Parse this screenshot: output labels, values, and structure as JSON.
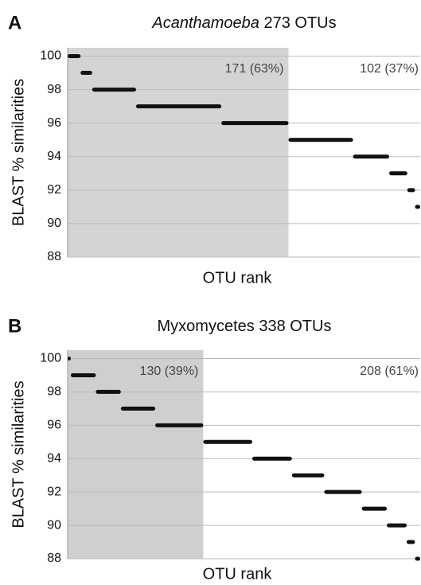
{
  "chart_data": [
    {
      "type": "rank_steps",
      "panel": "A",
      "title_taxon": "Acanthamoeba",
      "taxon_italic": true,
      "title_count": "273 OTUs",
      "ylabel": "BLAST % similarities",
      "xlabel": "OTU rank",
      "levels": [
        100,
        99,
        98,
        97,
        96,
        95,
        94,
        93,
        92,
        91
      ],
      "counts": [
        10,
        9,
        34,
        66,
        52,
        50,
        28,
        14,
        6,
        4
      ],
      "color": "#111111",
      "shade_color": "#d4d4d4",
      "shade_until_level": 96,
      "annotations": [
        "171 (63%)",
        "102 (37%)"
      ],
      "xlim": [
        0,
        273
      ],
      "ylim": [
        88,
        100.5
      ],
      "yticks": [
        88,
        90,
        92,
        94,
        96,
        98,
        100
      ],
      "grid": true
    },
    {
      "type": "rank_steps",
      "panel": "B",
      "title_taxon": "Myxomycetes",
      "taxon_italic": false,
      "title_count": "338 OTUs",
      "ylabel": "BLAST % similarities",
      "xlabel": "OTU rank",
      "levels": [
        100,
        99,
        98,
        97,
        96,
        95,
        94,
        93,
        92,
        91,
        90,
        89,
        88
      ],
      "counts": [
        3,
        24,
        24,
        33,
        46,
        47,
        38,
        31,
        36,
        24,
        19,
        8,
        5
      ],
      "color": "#111111",
      "shade_color": "#cfcfcf",
      "shade_until_level": 96,
      "annotations": [
        "130 (39%)",
        "208 (61%)"
      ],
      "xlim": [
        0,
        338
      ],
      "ylim": [
        88,
        100.5
      ],
      "yticks": [
        88,
        90,
        92,
        94,
        96,
        98,
        100
      ],
      "grid": true
    }
  ]
}
